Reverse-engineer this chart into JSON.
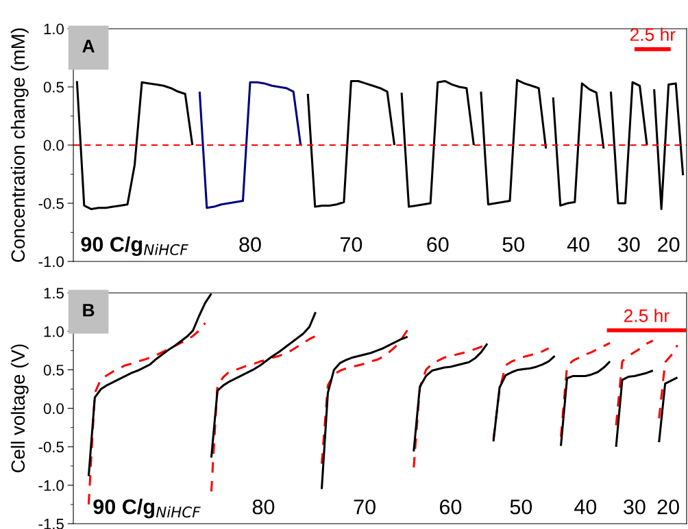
{
  "chart_data": [
    {
      "type": "line",
      "ylabel": "Concentration change (mM)",
      "categories": [
        null,
        null,
        null,
        null,
        null,
        null,
        null,
        null,
        null,
        null,
        null,
        null,
        null,
        null,
        null,
        null,
        null,
        null,
        null,
        null,
        null,
        null,
        null,
        null,
        null,
        null,
        null,
        null,
        null,
        null,
        null,
        null,
        null,
        null,
        null,
        null,
        null,
        null,
        null,
        null,
        null,
        null,
        null,
        null,
        null,
        null,
        null,
        null,
        null,
        null,
        null,
        null,
        null,
        null,
        null,
        null,
        null,
        null,
        null,
        null,
        null,
        null,
        null,
        null,
        null,
        null,
        null,
        null,
        null,
        null,
        null,
        null,
        null,
        null,
        null,
        null,
        null,
        null,
        null,
        null,
        null,
        null,
        null,
        null,
        null
      ],
      "ylim": [
        -1.0,
        1.0
      ],
      "yticks": [
        {
          "value": -1.0,
          "label": "-1.0"
        },
        {
          "value": -0.5,
          "label": "-0.5"
        },
        {
          "value": 0.0,
          "label": "0.0"
        },
        {
          "value": 0.5,
          "label": "0.5"
        },
        {
          "value": 1.0,
          "label": "1.0"
        }
      ],
      "tick_labels": "y",
      "series": [
        {
          "color": "#000000",
          "line_style": "solid",
          "values": [
            0.55,
            -0.52,
            -0.55,
            -0.54,
            -0.54,
            -0.53,
            -0.52,
            -0.51,
            -0.17,
            0.54,
            0.53,
            0.52,
            0.51,
            0.49,
            0.46,
            0.44,
            0.0,
            null,
            null,
            null,
            null,
            null,
            null,
            null,
            null,
            null,
            null,
            null,
            null,
            null,
            null,
            null,
            null,
            null,
            null,
            null,
            null,
            null,
            null,
            null,
            null,
            null,
            null,
            null,
            null,
            0.45,
            -0.53,
            -0.52,
            -0.51,
            -0.5,
            0.54,
            0.55,
            0.52,
            0.5,
            0.49,
            0.0,
            null,
            null,
            null,
            null,
            null,
            null,
            null,
            null,
            null,
            null,
            0.41,
            -0.52,
            -0.5,
            -0.49,
            0.53,
            0.48,
            0.45,
            -0.03,
            null,
            null,
            null,
            null,
            null,
            null,
            0.48,
            -0.55,
            0.52,
            0.53,
            -0.26
          ]
        },
        {
          "color": "#00007f",
          "line_style": "solid",
          "values": [
            null,
            null,
            null,
            null,
            null,
            null,
            null,
            null,
            null,
            null,
            null,
            null,
            null,
            null,
            null,
            null,
            null,
            0.46,
            -0.54,
            -0.53,
            -0.51,
            -0.5,
            -0.49,
            -0.48,
            0.54,
            0.54,
            0.53,
            0.51,
            0.5,
            0.49,
            0.46,
            0.0,
            null,
            null,
            null,
            null,
            null,
            null,
            null,
            null,
            null,
            null,
            null,
            null,
            null,
            null,
            null,
            null,
            null,
            null,
            null,
            null,
            null,
            null,
            null,
            null,
            null,
            null,
            null,
            null,
            null,
            null,
            null,
            null,
            null,
            null,
            null,
            null,
            null,
            null,
            null,
            null,
            null,
            null,
            null,
            null,
            null,
            null,
            null,
            null,
            null,
            null,
            null,
            null,
            null
          ]
        },
        {
          "color": "#000000",
          "line_style": "solid",
          "values": [
            null,
            null,
            null,
            null,
            null,
            null,
            null,
            null,
            null,
            null,
            null,
            null,
            null,
            null,
            null,
            null,
            null,
            null,
            null,
            null,
            null,
            null,
            null,
            null,
            null,
            null,
            null,
            null,
            null,
            null,
            null,
            null,
            0.44,
            -0.53,
            -0.52,
            -0.52,
            -0.51,
            -0.49,
            0.55,
            0.55,
            0.53,
            0.51,
            0.49,
            0.46,
            0.0,
            null,
            null,
            null,
            null,
            null,
            null,
            null,
            null,
            null,
            null,
            null,
            0.46,
            -0.51,
            -0.5,
            -0.49,
            -0.48,
            0.56,
            0.53,
            0.51,
            0.49,
            -0.03,
            null,
            null,
            null,
            null,
            null,
            null,
            null,
            null,
            0.46,
            -0.5,
            -0.5,
            0.54,
            0.51,
            0.0,
            null,
            null,
            null,
            null,
            null
          ]
        }
      ],
      "ref_lines": [
        {
          "axis": "y",
          "value": 0,
          "color": "#ff0000",
          "line_style": "dashed"
        }
      ],
      "annotations": [
        "A",
        "2.5 hr",
        "90 C/g$_{NiHCF}$",
        "80",
        "70",
        "60",
        "50",
        "40",
        "30",
        "20"
      ]
    },
    {
      "type": "line",
      "ylabel": "Cell voltage (V)",
      "categories": [
        null,
        null,
        null,
        null,
        null,
        null,
        null,
        null,
        null,
        null,
        null,
        null,
        null,
        null,
        null,
        null,
        null,
        null,
        null,
        null,
        null,
        null,
        null,
        null,
        null,
        null,
        null,
        null,
        null,
        null,
        null,
        null,
        null,
        null,
        null,
        null,
        null,
        null,
        null,
        null,
        null,
        null,
        null,
        null,
        null,
        null,
        null,
        null,
        null,
        null,
        null,
        null,
        null,
        null,
        null,
        null,
        null,
        null,
        null,
        null,
        null,
        null,
        null,
        null,
        null,
        null,
        null,
        null,
        null,
        null,
        null,
        null,
        null,
        null,
        null,
        null,
        null,
        null,
        null,
        null,
        null,
        null,
        null,
        null,
        null,
        null,
        null,
        null,
        null,
        null,
        null,
        null,
        null,
        null,
        null,
        null,
        null,
        null,
        null,
        null
      ],
      "ylim": [
        -1.5,
        1.5
      ],
      "yticks": [
        {
          "value": -1.5,
          "label": "-1.5"
        },
        {
          "value": -1.0,
          "label": "-1.0"
        },
        {
          "value": -0.5,
          "label": "-0.5"
        },
        {
          "value": 0.0,
          "label": "0.0"
        },
        {
          "value": 0.5,
          "label": "0.5"
        },
        {
          "value": 1.0,
          "label": "1.0"
        },
        {
          "value": 1.5,
          "label": "1.5"
        }
      ],
      "tick_labels": "y",
      "series": [
        {
          "color": "#ff0000",
          "line_style": "dashed",
          "values": [
            null,
            null,
            -1.25,
            0.2,
            0.38,
            0.43,
            0.48,
            0.52,
            0.56,
            0.58,
            0.61,
            0.63,
            0.66,
            0.69,
            0.73,
            0.77,
            0.81,
            0.85,
            0.89,
            0.94,
            1.01,
            1.11,
            null,
            null,
            null,
            null,
            null,
            null,
            null,
            null,
            null,
            null,
            null,
            null,
            null,
            null,
            null,
            null,
            null,
            null,
            -0.72,
            0.3,
            0.44,
            0.49,
            0.52,
            0.54,
            0.56,
            0.58,
            0.61,
            0.63,
            0.67,
            0.73,
            0.8,
            0.9,
            1.02,
            null,
            null,
            null,
            null,
            null,
            null,
            null,
            null,
            null,
            null,
            null,
            null,
            null,
            -0.4,
            0.24,
            0.56,
            0.61,
            0.64,
            0.67,
            0.69,
            0.72,
            0.74,
            0.78,
            null,
            null,
            null,
            null,
            null,
            null,
            null,
            null,
            null,
            null,
            -0.22,
            0.61,
            0.68,
            0.73,
            0.78,
            0.84,
            0.88,
            null,
            null,
            null,
            null,
            null
          ]
        },
        {
          "color": "#ff0000",
          "line_style": "dashed",
          "values": [
            null,
            null,
            null,
            null,
            null,
            null,
            null,
            null,
            null,
            null,
            null,
            null,
            null,
            null,
            null,
            null,
            null,
            null,
            null,
            null,
            null,
            null,
            -1.08,
            0.3,
            0.41,
            0.48,
            0.5,
            0.53,
            0.56,
            0.58,
            0.61,
            0.63,
            0.66,
            0.68,
            0.71,
            0.75,
            0.8,
            0.85,
            0.9,
            0.94,
            null,
            null,
            null,
            null,
            null,
            null,
            null,
            null,
            null,
            null,
            null,
            null,
            null,
            null,
            null,
            -0.77,
            0.27,
            0.5,
            0.58,
            0.62,
            0.66,
            0.68,
            0.7,
            0.72,
            0.74,
            0.77,
            0.8,
            0.84,
            null,
            null,
            null,
            null,
            null,
            null,
            null,
            null,
            null,
            null,
            null,
            -0.37,
            0.55,
            0.62,
            0.66,
            0.7,
            0.73,
            0.77,
            0.81,
            0.85,
            null,
            null,
            null,
            null,
            null,
            null,
            null,
            -0.13,
            0.6,
            0.69,
            0.82,
            null
          ]
        },
        {
          "color": "#000000",
          "line_style": "solid",
          "values": [
            null,
            null,
            -0.88,
            0.14,
            0.25,
            0.3,
            0.34,
            0.38,
            0.42,
            0.46,
            0.49,
            0.53,
            0.57,
            0.64,
            0.7,
            0.76,
            0.81,
            0.87,
            0.93,
            1.01,
            1.2,
            1.37,
            1.49,
            null,
            null,
            null,
            null,
            null,
            null,
            null,
            null,
            null,
            null,
            null,
            null,
            null,
            null,
            null,
            null,
            null,
            -1.05,
            0.2,
            0.5,
            0.59,
            0.63,
            0.66,
            0.68,
            0.7,
            0.72,
            0.75,
            0.78,
            0.82,
            0.86,
            0.9,
            0.93,
            null,
            null,
            null,
            null,
            null,
            null,
            null,
            null,
            null,
            null,
            null,
            null,
            null,
            -0.43,
            0.27,
            0.43,
            0.47,
            0.5,
            0.51,
            0.52,
            0.54,
            0.57,
            0.61,
            0.68,
            null,
            null,
            null,
            null,
            null,
            null,
            null,
            null,
            null,
            -0.5,
            0.37,
            0.41,
            0.42,
            0.44,
            0.46,
            0.49,
            null,
            null,
            null,
            null,
            null
          ]
        },
        {
          "color": "#000000",
          "line_style": "solid",
          "values": [
            null,
            null,
            null,
            null,
            null,
            null,
            null,
            null,
            null,
            null,
            null,
            null,
            null,
            null,
            null,
            null,
            null,
            null,
            null,
            null,
            null,
            null,
            -0.64,
            0.23,
            0.3,
            0.35,
            0.39,
            0.43,
            0.47,
            0.51,
            0.56,
            0.62,
            0.68,
            0.73,
            0.79,
            0.85,
            0.91,
            0.97,
            1.06,
            1.25,
            null,
            null,
            null,
            null,
            null,
            null,
            null,
            null,
            null,
            null,
            null,
            null,
            null,
            null,
            null,
            -0.56,
            0.28,
            0.42,
            0.49,
            0.51,
            0.53,
            0.54,
            0.56,
            0.58,
            0.6,
            0.65,
            0.73,
            0.84,
            null,
            null,
            null,
            null,
            null,
            null,
            null,
            null,
            null,
            null,
            null,
            -0.49,
            0.39,
            0.42,
            0.42,
            0.42,
            0.44,
            0.47,
            0.53,
            0.61,
            null,
            null,
            null,
            null,
            null,
            null,
            null,
            -0.44,
            0.32,
            0.36,
            0.4,
            null
          ]
        }
      ],
      "annotations": [
        "B",
        "2.5 hr",
        "90 C/g$_{NiHCF}$",
        "80",
        "70",
        "60",
        "50",
        "40",
        "30",
        "20"
      ]
    }
  ]
}
